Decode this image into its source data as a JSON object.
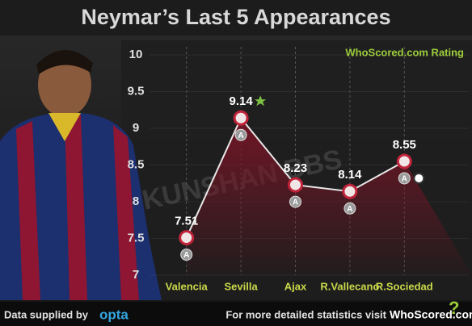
{
  "chart_data": {
    "type": "line",
    "title": "Neymar’s Last 5 Appearances",
    "rating_label": "WhoScored.com Rating",
    "categories": [
      "Valencia",
      "Sevilla",
      "Ajax",
      "R.Vallecano",
      "R.Sociedad"
    ],
    "values": [
      7.51,
      9.14,
      8.23,
      8.14,
      8.55
    ],
    "venues": [
      "A",
      "A",
      "A",
      "A",
      "A"
    ],
    "color": "#e8e8e8",
    "marker_color": "#c0243a",
    "area_color": "#7a1526",
    "ylim": [
      7,
      10
    ],
    "yticks": [
      7,
      7.5,
      8,
      8.5,
      9,
      9.5,
      10
    ],
    "grid": true,
    "watermark": "KUNSHAN BBS"
  },
  "footer": {
    "source_prefix": "Data supplied by",
    "source": "opta",
    "visit_text": "For more detailed statistics visit",
    "site": "WhoScored.com"
  }
}
